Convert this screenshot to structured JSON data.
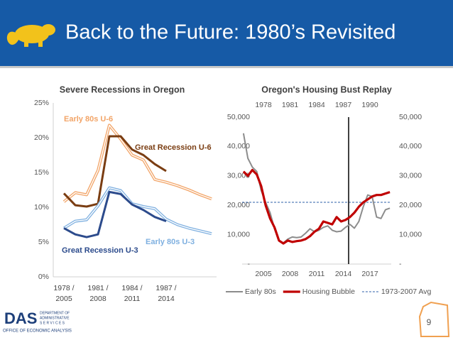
{
  "header": {
    "title": "Back to the Future: 1980’s Revisited"
  },
  "page_number": "9",
  "footer": {
    "logo": "DAS",
    "department": [
      "DEPARTMENT OF",
      "ADMINISTRATIVE",
      "S E R V I C E S"
    ],
    "office": "OFFICE OF ECONOMIC ANALYSIS"
  },
  "chart_data": [
    {
      "type": "line",
      "title": "Severe Recessions in Oregon",
      "categories": [
        "1978 / 2005",
        null,
        null,
        "1981 / 2008",
        null,
        null,
        "1984 / 2011",
        null,
        null,
        "1987 / 2014",
        null,
        null,
        null,
        null
      ],
      "ylim": [
        0,
        25
      ],
      "yticks": [
        {
          "value": 0,
          "label": "0%"
        },
        {
          "value": 5,
          "label": "5%"
        },
        {
          "value": 10,
          "label": "10%"
        },
        {
          "value": 15,
          "label": "15%"
        },
        {
          "value": 20,
          "label": "20%"
        },
        {
          "value": 25,
          "label": "25%"
        }
      ],
      "grid": false,
      "series": [
        {
          "name": "Early 80s U-6",
          "color": "#f2a467",
          "style": "double",
          "values": [
            10.8,
            12.1,
            11.8,
            15.3,
            21.8,
            19.8,
            17.5,
            16.8,
            14.0,
            13.6,
            13.1,
            12.5,
            11.8,
            11.2
          ]
        },
        {
          "name": "Great Recession U-6",
          "color": "#7a3d12",
          "style": "solid",
          "values": [
            12.0,
            10.3,
            10.1,
            10.5,
            20.2,
            20.2,
            18.3,
            17.5,
            16.2,
            15.2,
            null,
            null,
            null,
            null
          ]
        },
        {
          "name": "Early 80s U-3",
          "color": "#7fb0e0",
          "style": "double",
          "values": [
            7.0,
            8.0,
            8.2,
            10.2,
            12.8,
            12.4,
            10.5,
            10.1,
            9.8,
            8.3,
            7.5,
            7.0,
            6.6,
            6.2
          ]
        },
        {
          "name": "Great Recession U-3",
          "color": "#2c4b8c",
          "style": "solid",
          "values": [
            7.0,
            6.1,
            5.7,
            6.1,
            12.2,
            11.9,
            10.4,
            9.6,
            8.6,
            8.0,
            null,
            null,
            null,
            null
          ]
        }
      ]
    },
    {
      "type": "line",
      "title": "Oregon's Housing Bust Replay",
      "xlim": [
        2002.6,
        2019.4
      ],
      "xticks": [
        2005,
        2008,
        2011,
        2014,
        2017
      ],
      "x2lim": [
        1975.6,
        1992.4
      ],
      "x2ticks": [
        1978,
        1981,
        1984,
        1987,
        1990
      ],
      "ylim": [
        0,
        50000
      ],
      "yticks": [
        {
          "value": 0,
          "label": "-"
        },
        {
          "value": 10000,
          "label": "10,000"
        },
        {
          "value": 20000,
          "label": "20,000"
        },
        {
          "value": 30000,
          "label": "30,000"
        },
        {
          "value": 40000,
          "label": "40,000"
        },
        {
          "value": 50000,
          "label": "50,000"
        }
      ],
      "y2lim": [
        0,
        50000
      ],
      "y2ticks": [
        {
          "value": 0,
          "label": "-"
        },
        {
          "value": 10000,
          "label": "10,000"
        },
        {
          "value": 20000,
          "label": "20,000"
        },
        {
          "value": 30000,
          "label": "30,000"
        },
        {
          "value": 40000,
          "label": "40,000"
        },
        {
          "value": 50000,
          "label": "50,000"
        }
      ],
      "legend": "bottom",
      "series": [
        {
          "name": "Early 80s",
          "color": "#8c8c8c",
          "axis": "x2",
          "x": [
            1975.75,
            1976.25,
            1976.75,
            1977.25,
            1977.75,
            1978.25,
            1978.75,
            1979.25,
            1979.75,
            1980.25,
            1980.75,
            1981.25,
            1981.75,
            1982.25,
            1982.75,
            1983.25,
            1983.75,
            1984.25,
            1984.75,
            1985.25,
            1985.75,
            1986.25,
            1986.75,
            1987.25,
            1987.75,
            1988.25,
            1988.75,
            1989.25,
            1989.75,
            1990.25,
            1990.75,
            1991.25,
            1991.75,
            1992.25
          ],
          "values": [
            44500,
            36000,
            33000,
            31500,
            25000,
            21000,
            17500,
            12000,
            8000,
            7200,
            8500,
            9200,
            9000,
            9200,
            10500,
            12000,
            11000,
            11500,
            12500,
            13000,
            11500,
            11000,
            11200,
            12500,
            13500,
            12200,
            14500,
            19500,
            23500,
            23000,
            16000,
            15500,
            18500,
            19000
          ]
        },
        {
          "name": "Housing Bubble",
          "color": "#c00000",
          "x": [
            2002.75,
            2003.25,
            2003.75,
            2004.25,
            2004.75,
            2005.25,
            2005.75,
            2006.25,
            2006.75,
            2007.25,
            2007.75,
            2008.25,
            2008.75,
            2009.25,
            2009.75,
            2010.25,
            2010.75,
            2011.25,
            2011.75,
            2012.25,
            2012.75,
            2013.25,
            2013.75,
            2014.25,
            2014.75,
            2015.25,
            2015.75,
            2016.25,
            2016.75,
            2017.25,
            2017.75,
            2018.25,
            2018.75,
            2019.25
          ],
          "values": [
            31500,
            30000,
            32000,
            30500,
            26500,
            20000,
            15500,
            12500,
            8000,
            7000,
            8000,
            7500,
            7800,
            8000,
            8500,
            9500,
            11000,
            12000,
            14500,
            14000,
            13500,
            16000,
            14500,
            15000,
            16000,
            17500,
            19500,
            21000,
            22000,
            23000,
            23500,
            23500,
            24000,
            24500
          ]
        }
      ],
      "reference_line": {
        "name": "1973-2007 Avg",
        "value": 21000,
        "color": "#2e5fa8",
        "style": "dashed"
      },
      "vline": {
        "x": 2014.6,
        "color": "#000000"
      }
    }
  ]
}
